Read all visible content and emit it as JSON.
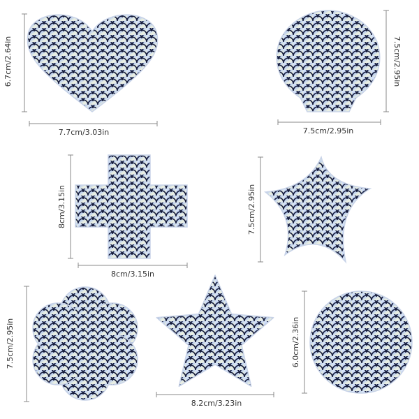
{
  "shapes": [
    {
      "width": "7.7cm/3.03in",
      "height": "6.7cm/2.64in"
    },
    {
      "width": "7.5cm/2.95in",
      "height": "7.5cm/2.95in"
    },
    {
      "width": "8cm/3.15in",
      "height": "8cm/3.15in"
    },
    {
      "height": "7.5cm/2.95in"
    },
    {
      "height": "7.5cm/2.95in"
    },
    {
      "width": "8.2cm/3.23in"
    },
    {
      "height": "6.0cm/2.36in"
    }
  ]
}
